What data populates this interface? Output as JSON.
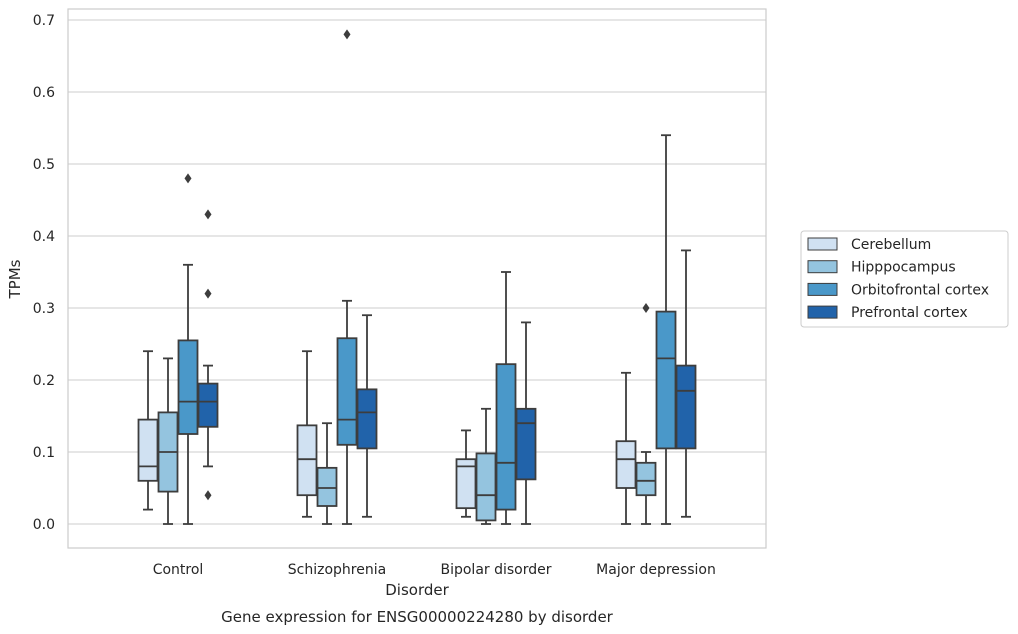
{
  "chart_data": {
    "type": "box",
    "title": "",
    "caption": "Gene expression for ENSG00000224280 by disorder",
    "xlabel": "Disorder",
    "ylabel": "TPMs",
    "ylim": [
      -0.033,
      0.715
    ],
    "yticks": [
      0.0,
      0.1,
      0.2,
      0.3,
      0.4,
      0.5,
      0.6,
      0.7
    ],
    "ytick_labels": [
      "0.0",
      "0.1",
      "0.2",
      "0.3",
      "0.4",
      "0.5",
      "0.6",
      "0.7"
    ],
    "grid": "horizontal",
    "legend_position": "right",
    "categories": [
      "Control",
      "Schizophrenia",
      "Bipolar disorder",
      "Major depression"
    ],
    "series": [
      {
        "name": "Cerebellum",
        "color": "#d0e1f2",
        "boxes": [
          {
            "whisker_low": 0.02,
            "q1": 0.06,
            "median": 0.08,
            "q3": 0.145,
            "whisker_high": 0.24,
            "outliers": []
          },
          {
            "whisker_low": 0.01,
            "q1": 0.04,
            "median": 0.09,
            "q3": 0.137,
            "whisker_high": 0.24,
            "outliers": []
          },
          {
            "whisker_low": 0.01,
            "q1": 0.022,
            "median": 0.08,
            "q3": 0.09,
            "whisker_high": 0.13,
            "outliers": []
          },
          {
            "whisker_low": 0.0,
            "q1": 0.05,
            "median": 0.09,
            "q3": 0.115,
            "whisker_high": 0.21,
            "outliers": []
          }
        ]
      },
      {
        "name": "Hipppocampus",
        "color": "#94c4df",
        "boxes": [
          {
            "whisker_low": 0.0,
            "q1": 0.045,
            "median": 0.1,
            "q3": 0.155,
            "whisker_high": 0.23,
            "outliers": []
          },
          {
            "whisker_low": 0.0,
            "q1": 0.025,
            "median": 0.05,
            "q3": 0.078,
            "whisker_high": 0.14,
            "outliers": []
          },
          {
            "whisker_low": 0.0,
            "q1": 0.005,
            "median": 0.04,
            "q3": 0.098,
            "whisker_high": 0.16,
            "outliers": []
          },
          {
            "whisker_low": 0.0,
            "q1": 0.04,
            "median": 0.06,
            "q3": 0.085,
            "whisker_high": 0.1,
            "outliers": [
              0.3
            ]
          }
        ]
      },
      {
        "name": "Orbitofrontal cortex",
        "color": "#4a98c9",
        "boxes": [
          {
            "whisker_low": 0.0,
            "q1": 0.125,
            "median": 0.17,
            "q3": 0.255,
            "whisker_high": 0.36,
            "outliers": [
              0.48
            ]
          },
          {
            "whisker_low": 0.0,
            "q1": 0.11,
            "median": 0.145,
            "q3": 0.258,
            "whisker_high": 0.31,
            "outliers": [
              0.68
            ]
          },
          {
            "whisker_low": 0.0,
            "q1": 0.02,
            "median": 0.085,
            "q3": 0.222,
            "whisker_high": 0.35,
            "outliers": []
          },
          {
            "whisker_low": 0.0,
            "q1": 0.105,
            "median": 0.23,
            "q3": 0.295,
            "whisker_high": 0.54,
            "outliers": []
          }
        ]
      },
      {
        "name": "Prefrontal cortex",
        "color": "#2163aa",
        "boxes": [
          {
            "whisker_low": 0.08,
            "q1": 0.135,
            "median": 0.17,
            "q3": 0.195,
            "whisker_high": 0.22,
            "outliers": [
              0.43,
              0.32,
              0.04
            ]
          },
          {
            "whisker_low": 0.01,
            "q1": 0.105,
            "median": 0.155,
            "q3": 0.187,
            "whisker_high": 0.29,
            "outliers": []
          },
          {
            "whisker_low": 0.0,
            "q1": 0.062,
            "median": 0.14,
            "q3": 0.16,
            "whisker_high": 0.28,
            "outliers": []
          },
          {
            "whisker_low": 0.01,
            "q1": 0.105,
            "median": 0.185,
            "q3": 0.22,
            "whisker_high": 0.38,
            "outliers": []
          }
        ]
      }
    ],
    "colors": {
      "box_edge": "#3d3d3d",
      "grid": "#cccccc",
      "frame": "#cccccc",
      "text": "#262626"
    }
  }
}
